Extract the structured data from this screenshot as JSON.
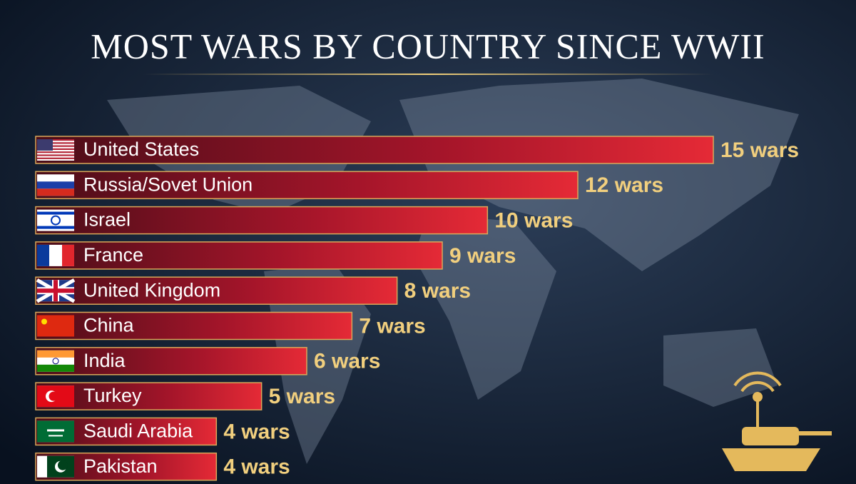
{
  "chart_data": {
    "type": "bar",
    "orientation": "horizontal",
    "title": "MOST WARS BY COUNTRY SINCE WWII",
    "categories": [
      "United States",
      "Russia/Sovet Union",
      "Israel",
      "France",
      "United Kingdom",
      "China",
      "India",
      "Turkey",
      "Saudi Arabia",
      "Pakistan"
    ],
    "values": [
      15,
      12,
      10,
      9,
      8,
      7,
      6,
      5,
      4,
      4
    ],
    "value_labels": [
      "15 wars",
      "12 wars",
      "10 wars",
      "9 wars",
      "8 wars",
      "7 wars",
      "6 wars",
      "5 wars",
      "4 wars",
      "4 wars"
    ],
    "color": "#c8192a"
  }
}
